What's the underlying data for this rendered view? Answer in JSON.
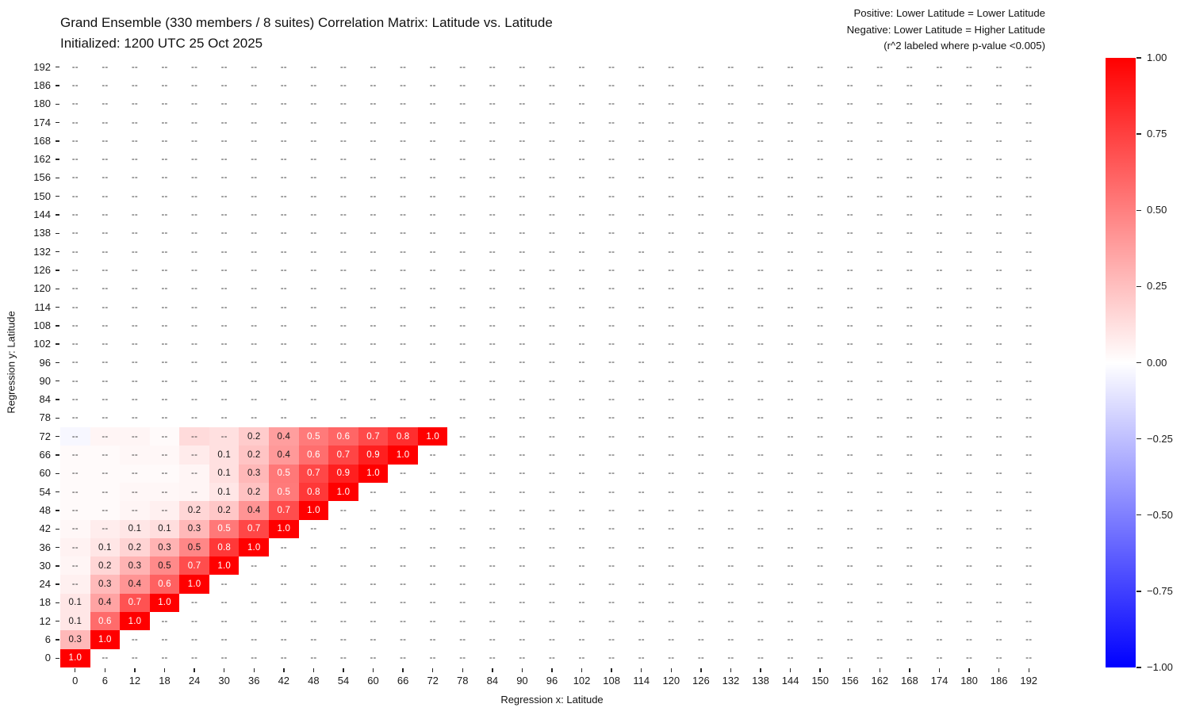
{
  "title": {
    "line1": "Grand Ensemble (330 members / 8 suites) Correlation Matrix: Latitude vs. Latitude",
    "line2": "Initialized: 1200 UTC 25 Oct 2025"
  },
  "annotation": {
    "line1": "Positive: Lower Latitude = Lower Latitude",
    "line2": "Negative: Lower Latitude = Higher Latitude",
    "line3": "(r^2 labeled where p-value <0.005)"
  },
  "chart_data": {
    "type": "heatmap",
    "xlabel": "Regression x: Latitude",
    "ylabel": "Regression y: Latitude",
    "x_ticks": [
      0,
      6,
      12,
      18,
      24,
      30,
      36,
      42,
      48,
      54,
      60,
      66,
      72,
      78,
      84,
      90,
      96,
      102,
      108,
      114,
      120,
      126,
      132,
      138,
      144,
      150,
      156,
      162,
      168,
      174,
      180,
      186,
      192
    ],
    "y_ticks": [
      192,
      186,
      180,
      174,
      168,
      162,
      156,
      150,
      144,
      138,
      132,
      126,
      120,
      114,
      108,
      102,
      96,
      90,
      84,
      78,
      72,
      66,
      60,
      54,
      48,
      42,
      36,
      30,
      24,
      18,
      12,
      6,
      0
    ],
    "unlabeled_marker": "--",
    "grid": false,
    "colormap": {
      "name": "blue-white-red",
      "min": -1,
      "max": 1,
      "negative": "#0000ff",
      "zero": "#ffffff",
      "positive": "#ff0000"
    },
    "colorbar_tick_labels": [
      "1.00",
      "0.75",
      "0.50",
      "0.25",
      "0.00",
      "−0.25",
      "−0.50",
      "−0.75",
      "−1.00"
    ],
    "colorbar_tick_values": [
      1,
      0.75,
      0.5,
      0.25,
      0,
      -0.25,
      -0.5,
      -0.75,
      -1
    ],
    "rows_note": "labels/values indexed by column x = 0,6,12,... up to the diagonal x = y; all other cells show the unlabeled marker on white",
    "rows": [
      {
        "y": 0,
        "labels": [
          "1.0"
        ],
        "values": [
          1.0
        ]
      },
      {
        "y": 6,
        "labels": [
          "0.3",
          "1.0"
        ],
        "values": [
          0.28,
          1.0
        ]
      },
      {
        "y": 12,
        "labels": [
          "0.1",
          "0.6",
          "1.0"
        ],
        "values": [
          0.1,
          0.58,
          1.0
        ]
      },
      {
        "y": 18,
        "labels": [
          "0.1",
          "0.4",
          "0.7",
          "1.0"
        ],
        "values": [
          0.1,
          0.36,
          0.68,
          1.0
        ]
      },
      {
        "y": 24,
        "labels": [
          "--",
          "0.3",
          "0.4",
          "0.6",
          "1.0"
        ],
        "values": [
          0.06,
          0.27,
          0.42,
          0.62,
          1.0
        ]
      },
      {
        "y": 30,
        "labels": [
          "--",
          "0.2",
          "0.3",
          "0.5",
          "0.7",
          "1.0"
        ],
        "values": [
          0.04,
          0.16,
          0.3,
          0.46,
          0.7,
          1.0
        ]
      },
      {
        "y": 36,
        "labels": [
          "--",
          "0.1",
          "0.2",
          "0.3",
          "0.5",
          "0.8",
          "1.0"
        ],
        "values": [
          0.05,
          0.1,
          0.17,
          0.3,
          0.47,
          0.78,
          1.0
        ]
      },
      {
        "y": 42,
        "labels": [
          "--",
          "--",
          "0.1",
          "0.1",
          "0.3",
          "0.5",
          "0.7",
          "1.0"
        ],
        "values": [
          0.03,
          0.07,
          0.1,
          0.13,
          0.28,
          0.53,
          0.72,
          1.0
        ]
      },
      {
        "y": 48,
        "labels": [
          "--",
          "--",
          "--",
          "--",
          "0.2",
          "0.2",
          "0.4",
          "0.7",
          "1.0"
        ],
        "values": [
          0.02,
          0.02,
          0.04,
          0.06,
          0.16,
          0.22,
          0.42,
          0.7,
          1.0
        ]
      },
      {
        "y": 54,
        "labels": [
          "--",
          "--",
          "--",
          "--",
          "--",
          "0.1",
          "0.2",
          "0.5",
          "0.8",
          "1.0"
        ],
        "values": [
          0.02,
          0.02,
          0.03,
          0.03,
          0.04,
          0.1,
          0.24,
          0.52,
          0.78,
          1.0
        ]
      },
      {
        "y": 60,
        "labels": [
          "--",
          "--",
          "--",
          "--",
          "--",
          "0.1",
          "0.3",
          "0.5",
          "0.7",
          "0.9",
          "1.0"
        ],
        "values": [
          0.02,
          0.02,
          0.02,
          0.02,
          0.04,
          0.12,
          0.28,
          0.53,
          0.72,
          0.88,
          1.0
        ]
      },
      {
        "y": 66,
        "labels": [
          "--",
          "--",
          "--",
          "--",
          "--",
          "0.1",
          "0.2",
          "0.4",
          "0.6",
          "0.7",
          "0.9",
          "1.0"
        ],
        "values": [
          0.02,
          0.02,
          0.03,
          0.03,
          0.08,
          0.12,
          0.23,
          0.4,
          0.57,
          0.73,
          0.88,
          1.0
        ]
      },
      {
        "y": 72,
        "labels": [
          "--",
          "--",
          "--",
          "--",
          "--",
          "--",
          "0.2",
          "0.4",
          "0.5",
          "0.6",
          "0.7",
          "0.8",
          "1.0"
        ],
        "values": [
          -0.03,
          0.04,
          0.04,
          0.02,
          0.14,
          0.12,
          0.2,
          0.38,
          0.52,
          0.6,
          0.71,
          0.82,
          1.0
        ]
      }
    ],
    "style": {
      "marker_text_color": "#3a3a3a",
      "label_dark_text_color": "#161616",
      "label_light_text_color": "#ffffff",
      "tick_color": "#262626"
    }
  }
}
